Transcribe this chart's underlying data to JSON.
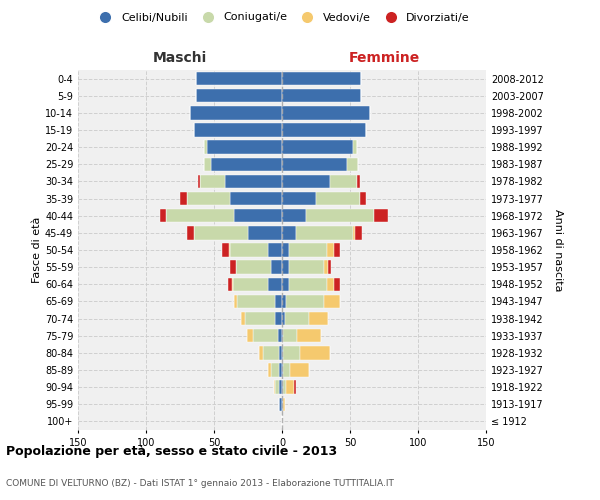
{
  "age_groups": [
    "100+",
    "95-99",
    "90-94",
    "85-89",
    "80-84",
    "75-79",
    "70-74",
    "65-69",
    "60-64",
    "55-59",
    "50-54",
    "45-49",
    "40-44",
    "35-39",
    "30-34",
    "25-29",
    "20-24",
    "15-19",
    "10-14",
    "5-9",
    "0-4"
  ],
  "birth_years": [
    "≤ 1912",
    "1913-1917",
    "1918-1922",
    "1923-1927",
    "1928-1932",
    "1933-1937",
    "1938-1942",
    "1943-1947",
    "1948-1952",
    "1953-1957",
    "1958-1962",
    "1963-1967",
    "1968-1972",
    "1973-1977",
    "1978-1982",
    "1983-1987",
    "1988-1992",
    "1993-1997",
    "1998-2002",
    "2003-2007",
    "2008-2012"
  ],
  "maschi_celibi": [
    0,
    2,
    2,
    2,
    2,
    3,
    5,
    5,
    10,
    8,
    10,
    25,
    35,
    38,
    42,
    52,
    55,
    65,
    68,
    63,
    63
  ],
  "maschi_coniugati": [
    0,
    0,
    3,
    6,
    12,
    18,
    22,
    28,
    26,
    26,
    28,
    40,
    50,
    32,
    18,
    5,
    2,
    0,
    0,
    0,
    0
  ],
  "maschi_vedovi": [
    0,
    0,
    1,
    2,
    3,
    5,
    3,
    2,
    1,
    0,
    1,
    0,
    0,
    0,
    0,
    0,
    0,
    0,
    0,
    0,
    0
  ],
  "maschi_divorziati": [
    0,
    0,
    0,
    0,
    0,
    0,
    0,
    0,
    3,
    4,
    5,
    5,
    5,
    5,
    2,
    0,
    0,
    0,
    0,
    0,
    0
  ],
  "femmine_nubili": [
    0,
    1,
    1,
    1,
    1,
    1,
    2,
    3,
    5,
    5,
    5,
    10,
    18,
    25,
    35,
    48,
    52,
    62,
    65,
    58,
    58
  ],
  "femmine_coniugate": [
    0,
    0,
    2,
    5,
    12,
    10,
    18,
    28,
    28,
    26,
    28,
    42,
    50,
    32,
    20,
    8,
    3,
    0,
    0,
    0,
    0
  ],
  "femmine_vedove": [
    0,
    1,
    6,
    14,
    22,
    18,
    14,
    12,
    5,
    3,
    5,
    2,
    0,
    0,
    0,
    0,
    0,
    0,
    0,
    0,
    0
  ],
  "femmine_divorziate": [
    0,
    0,
    1,
    0,
    0,
    0,
    0,
    0,
    5,
    2,
    5,
    5,
    10,
    5,
    2,
    0,
    0,
    0,
    0,
    0,
    0
  ],
  "color_celibi": "#3d6fad",
  "color_coniugati": "#c8d9aa",
  "color_vedovi": "#f5c96e",
  "color_divorziati": "#cc2222",
  "legend_labels": [
    "Celibi/Nubili",
    "Coniugati/e",
    "Vedovi/e",
    "Divorziati/e"
  ],
  "title": "Popolazione per età, sesso e stato civile - 2013",
  "subtitle": "COMUNE DI VELTURNO (BZ) - Dati ISTAT 1° gennaio 2013 - Elaborazione TUTTITALIA.IT",
  "label_maschi": "Maschi",
  "label_femmine": "Femmine",
  "ylabel_left": "Fasce di età",
  "ylabel_right": "Anni di nascita",
  "xlim": 150,
  "bg_color": "#ffffff",
  "plot_bg": "#f0f0f0",
  "grid_color": "#cccccc"
}
